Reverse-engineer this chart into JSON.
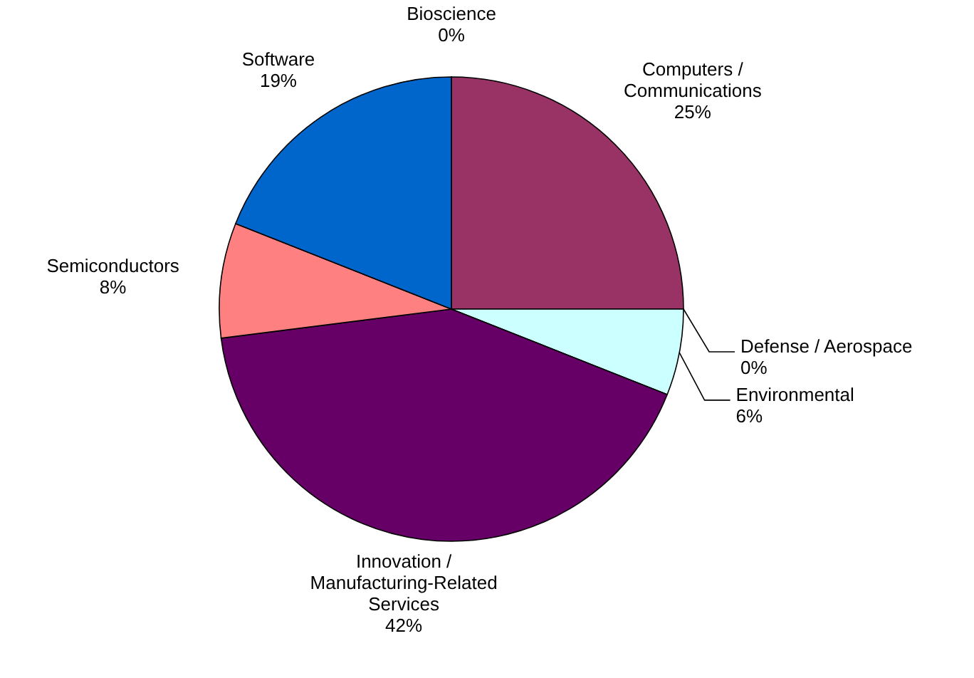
{
  "chart_data": {
    "type": "pie",
    "categories": [
      "Bioscience",
      "Computers / Communications",
      "Defense / Aerospace",
      "Environmental",
      "Innovation / Manufacturing-Related Services",
      "Semiconductors",
      "Software"
    ],
    "values": [
      0,
      25,
      0,
      6,
      42,
      8,
      19
    ],
    "colors": [
      "#9999ff",
      "#993366",
      "#ffffcc",
      "#ccffff",
      "#660066",
      "#ff8080",
      "#0066cc"
    ],
    "value_labels": [
      "0%",
      "25%",
      "0%",
      "6%",
      "42%",
      "8%",
      "19%"
    ]
  }
}
